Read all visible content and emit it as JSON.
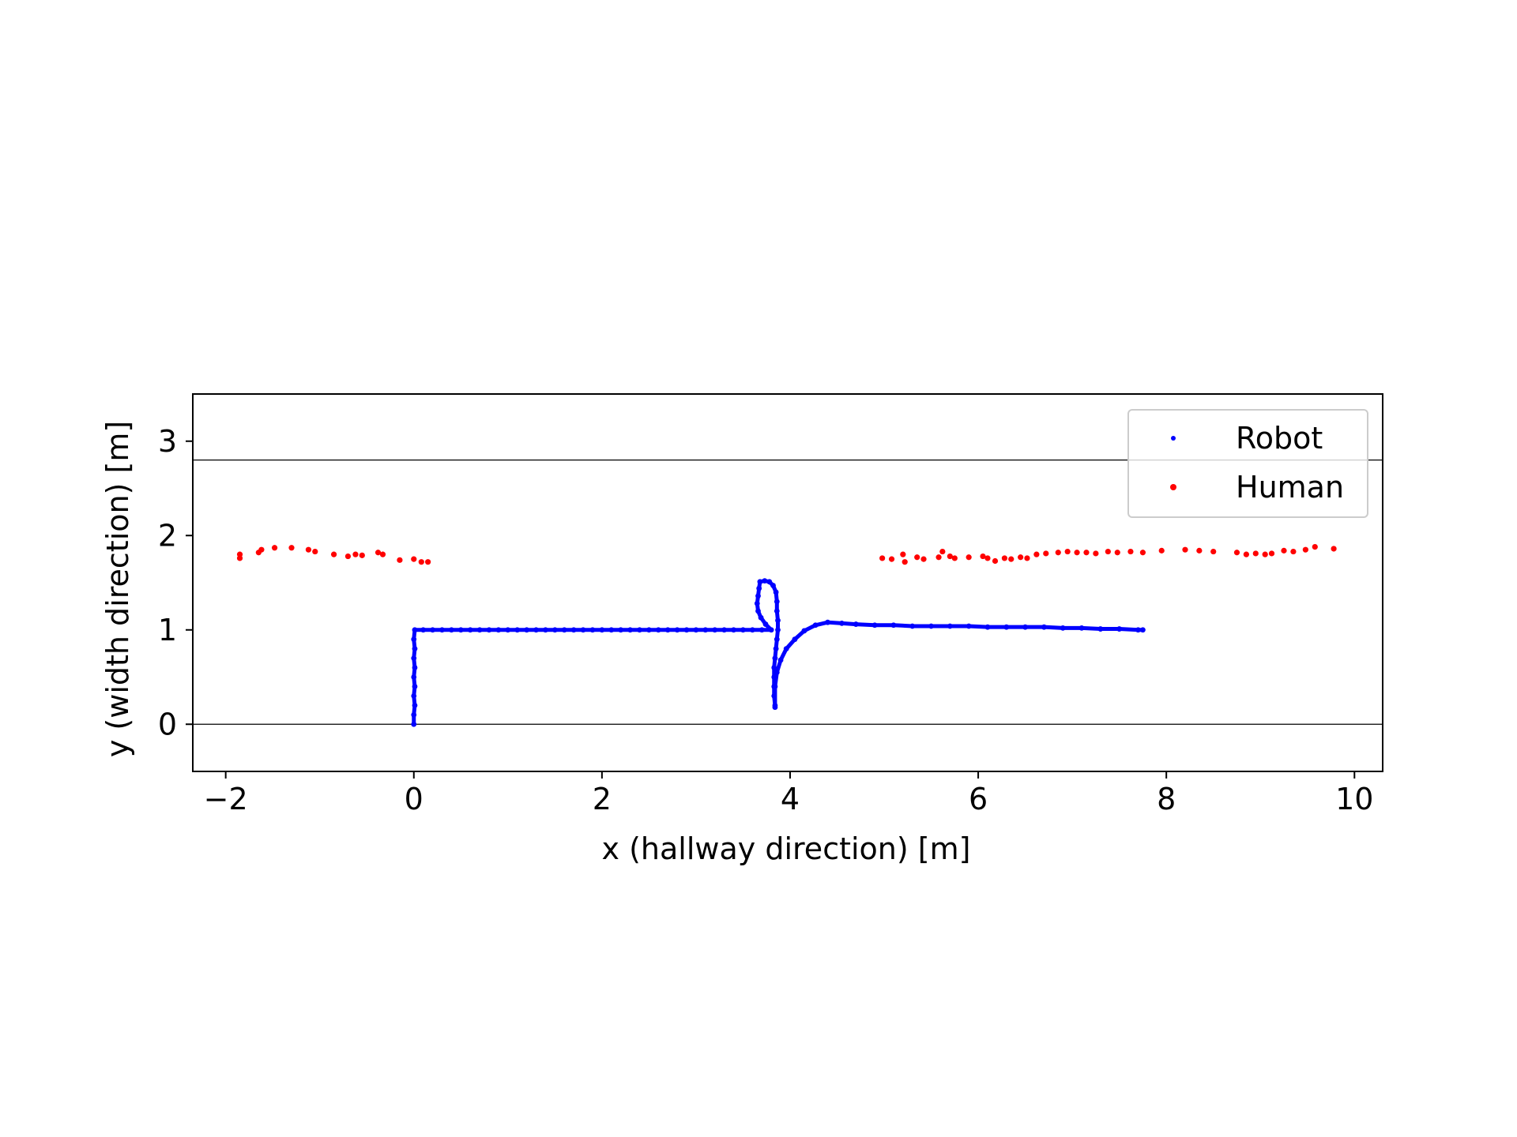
{
  "chart_data": {
    "type": "scatter",
    "title": "",
    "xlabel": "x (hallway direction) [m]",
    "ylabel": "y (width direction) [m]",
    "xlim": [
      -2.35,
      10.3
    ],
    "ylim": [
      -0.5,
      3.5
    ],
    "xticks": [
      -2,
      0,
      2,
      4,
      6,
      8,
      10
    ],
    "xtick_labels": [
      "−2",
      "0",
      "2",
      "4",
      "6",
      "8",
      "10"
    ],
    "yticks": [
      0,
      1,
      2,
      3
    ],
    "ytick_labels": [
      "0",
      "1",
      "2",
      "3"
    ],
    "grid": false,
    "legend_position": "top-right",
    "hlines": [
      {
        "y": 0,
        "color": "#000000"
      },
      {
        "y": 2.8,
        "color": "#000000"
      }
    ],
    "series": [
      {
        "name": "Robot",
        "color": "#0000ff",
        "marker_size": "small",
        "points": [
          [
            0.0,
            0.0
          ],
          [
            0.0,
            0.1
          ],
          [
            0.01,
            0.2
          ],
          [
            0.0,
            0.3
          ],
          [
            0.01,
            0.4
          ],
          [
            0.0,
            0.5
          ],
          [
            0.01,
            0.6
          ],
          [
            0.0,
            0.7
          ],
          [
            0.01,
            0.8
          ],
          [
            0.0,
            0.9
          ],
          [
            0.01,
            1.0
          ],
          [
            0.1,
            1.0
          ],
          [
            0.2,
            1.0
          ],
          [
            0.3,
            1.0
          ],
          [
            0.4,
            1.0
          ],
          [
            0.5,
            1.0
          ],
          [
            0.6,
            1.0
          ],
          [
            0.7,
            1.0
          ],
          [
            0.8,
            1.0
          ],
          [
            0.9,
            1.0
          ],
          [
            1.0,
            1.0
          ],
          [
            1.1,
            1.0
          ],
          [
            1.2,
            1.0
          ],
          [
            1.3,
            1.0
          ],
          [
            1.4,
            1.0
          ],
          [
            1.5,
            1.0
          ],
          [
            1.6,
            1.0
          ],
          [
            1.7,
            1.0
          ],
          [
            1.8,
            1.0
          ],
          [
            1.9,
            1.0
          ],
          [
            2.0,
            1.0
          ],
          [
            2.1,
            1.0
          ],
          [
            2.2,
            1.0
          ],
          [
            2.3,
            1.0
          ],
          [
            2.4,
            1.0
          ],
          [
            2.5,
            1.0
          ],
          [
            2.6,
            1.0
          ],
          [
            2.7,
            1.0
          ],
          [
            2.8,
            1.0
          ],
          [
            2.9,
            1.0
          ],
          [
            3.0,
            1.0
          ],
          [
            3.1,
            1.0
          ],
          [
            3.2,
            1.0
          ],
          [
            3.3,
            1.0
          ],
          [
            3.4,
            1.0
          ],
          [
            3.5,
            1.0
          ],
          [
            3.6,
            1.0
          ],
          [
            3.7,
            1.0
          ],
          [
            3.8,
            1.0
          ],
          [
            3.74,
            1.06
          ],
          [
            3.69,
            1.13
          ],
          [
            3.66,
            1.2
          ],
          [
            3.65,
            1.28
          ],
          [
            3.66,
            1.36
          ],
          [
            3.67,
            1.44
          ],
          [
            3.68,
            1.51
          ],
          [
            3.73,
            1.52
          ],
          [
            3.78,
            1.51
          ],
          [
            3.82,
            1.47
          ],
          [
            3.85,
            1.4
          ],
          [
            3.86,
            1.3
          ],
          [
            3.86,
            1.2
          ],
          [
            3.87,
            1.1
          ],
          [
            3.87,
            1.0
          ],
          [
            3.86,
            0.9
          ],
          [
            3.85,
            0.8
          ],
          [
            3.84,
            0.7
          ],
          [
            3.83,
            0.6
          ],
          [
            3.83,
            0.5
          ],
          [
            3.83,
            0.4
          ],
          [
            3.83,
            0.3
          ],
          [
            3.84,
            0.2
          ],
          [
            3.84,
            0.18
          ],
          [
            3.84,
            0.4
          ],
          [
            3.86,
            0.55
          ],
          [
            3.9,
            0.68
          ],
          [
            3.96,
            0.8
          ],
          [
            4.05,
            0.9
          ],
          [
            4.15,
            0.99
          ],
          [
            4.27,
            1.05
          ],
          [
            4.4,
            1.08
          ],
          [
            4.55,
            1.07
          ],
          [
            4.7,
            1.06
          ],
          [
            4.9,
            1.05
          ],
          [
            5.1,
            1.05
          ],
          [
            5.3,
            1.04
          ],
          [
            5.5,
            1.04
          ],
          [
            5.7,
            1.04
          ],
          [
            5.9,
            1.04
          ],
          [
            6.1,
            1.03
          ],
          [
            6.3,
            1.03
          ],
          [
            6.5,
            1.03
          ],
          [
            6.7,
            1.03
          ],
          [
            6.9,
            1.02
          ],
          [
            7.1,
            1.02
          ],
          [
            7.3,
            1.01
          ],
          [
            7.5,
            1.01
          ],
          [
            7.7,
            1.0
          ],
          [
            7.75,
            1.0
          ]
        ]
      },
      {
        "name": "Human",
        "color": "#ff0000",
        "marker_size": "large",
        "points": [
          [
            -1.85,
            1.8
          ],
          [
            -1.85,
            1.76
          ],
          [
            -1.65,
            1.82
          ],
          [
            -1.62,
            1.85
          ],
          [
            -1.48,
            1.87
          ],
          [
            -1.3,
            1.87
          ],
          [
            -1.12,
            1.85
          ],
          [
            -1.05,
            1.83
          ],
          [
            -0.85,
            1.8
          ],
          [
            -0.7,
            1.78
          ],
          [
            -0.62,
            1.8
          ],
          [
            -0.55,
            1.79
          ],
          [
            -0.38,
            1.82
          ],
          [
            -0.33,
            1.8
          ],
          [
            -0.15,
            1.74
          ],
          [
            0.0,
            1.75
          ],
          [
            0.08,
            1.72
          ],
          [
            0.15,
            1.72
          ],
          [
            4.98,
            1.76
          ],
          [
            5.08,
            1.75
          ],
          [
            5.2,
            1.8
          ],
          [
            5.22,
            1.72
          ],
          [
            5.35,
            1.77
          ],
          [
            5.42,
            1.75
          ],
          [
            5.58,
            1.77
          ],
          [
            5.62,
            1.83
          ],
          [
            5.7,
            1.78
          ],
          [
            5.75,
            1.76
          ],
          [
            5.9,
            1.77
          ],
          [
            6.05,
            1.78
          ],
          [
            6.1,
            1.76
          ],
          [
            6.18,
            1.73
          ],
          [
            6.28,
            1.76
          ],
          [
            6.35,
            1.75
          ],
          [
            6.45,
            1.77
          ],
          [
            6.52,
            1.76
          ],
          [
            6.62,
            1.8
          ],
          [
            6.72,
            1.81
          ],
          [
            6.85,
            1.82
          ],
          [
            6.95,
            1.83
          ],
          [
            7.05,
            1.82
          ],
          [
            7.15,
            1.82
          ],
          [
            7.25,
            1.81
          ],
          [
            7.38,
            1.83
          ],
          [
            7.48,
            1.82
          ],
          [
            7.62,
            1.83
          ],
          [
            7.75,
            1.82
          ],
          [
            7.95,
            1.84
          ],
          [
            8.2,
            1.85
          ],
          [
            8.35,
            1.84
          ],
          [
            8.5,
            1.83
          ],
          [
            8.75,
            1.82
          ],
          [
            8.85,
            1.8
          ],
          [
            8.95,
            1.81
          ],
          [
            9.05,
            1.8
          ],
          [
            9.12,
            1.81
          ],
          [
            9.25,
            1.84
          ],
          [
            9.35,
            1.83
          ],
          [
            9.48,
            1.85
          ],
          [
            9.58,
            1.88
          ],
          [
            9.78,
            1.86
          ]
        ]
      }
    ]
  }
}
